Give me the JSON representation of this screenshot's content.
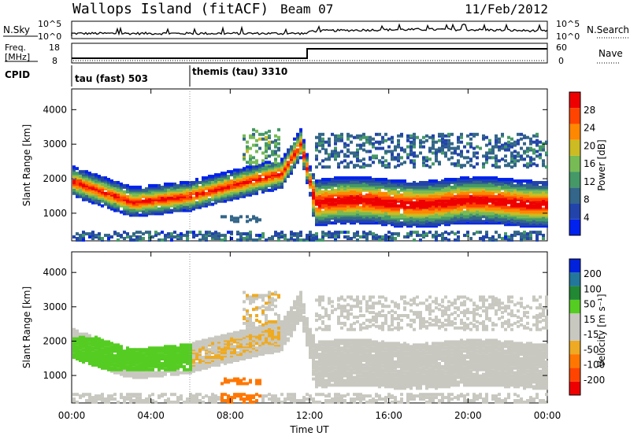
{
  "header": {
    "station": "Wallops Island (fitACF)",
    "beam": "Beam 07",
    "date": "11/Feb/2012"
  },
  "top_panel": {
    "nsky_label": "N.Sky",
    "nsky_tick_top": "10^5",
    "nsky_tick_bottom": "10^0",
    "nsearch_label": "N.Search",
    "nsearch_tick_top": "10^5",
    "nsearch_tick_bottom": "10^0",
    "freq_label_line1": "Freq.",
    "freq_label_line2": "[MHz]",
    "freq_tick_top": "18",
    "freq_tick_bottom": "8",
    "nave_label": "Nave",
    "nave_tick_top": "60",
    "nave_tick_bottom": "0",
    "cpid_label": "CPID",
    "cpid_segments": [
      "tau (fast) 503",
      "themis (tau) 3310"
    ]
  },
  "colors": {
    "power_scale": [
      "#0022ee",
      "#2244aa",
      "#336688",
      "#449966",
      "#77bb55",
      "#ccbb22",
      "#ff8800",
      "#ff4400",
      "#ee0000"
    ],
    "velocity_scale": [
      "#0022dd",
      "#22779a",
      "#228833",
      "#55cc22",
      "#c8c8c0",
      "#c8c8c0",
      "#eeaa22",
      "#ff7700",
      "#ff4400",
      "#ee0000"
    ]
  },
  "chart_data": [
    {
      "type": "heatmap",
      "ylabel": "Slant Range [km]",
      "yticks": [
        "1000",
        "2000",
        "3000",
        "4000"
      ],
      "ylim": [
        200,
        4600
      ],
      "xlim": [
        "00:00",
        "24:00"
      ],
      "colorbar": {
        "label": "Power [dB]",
        "ticks": [
          "4",
          "8",
          "12",
          "16",
          "20",
          "24",
          "28"
        ],
        "range": [
          0,
          32
        ]
      },
      "description_values": {
        "main_echo_band_range_km": [
          [
            0,
            1900
          ],
          [
            3,
            1300
          ],
          [
            6,
            1500
          ],
          [
            10,
            2100
          ],
          [
            12,
            1200
          ],
          [
            24,
            1300
          ]
        ]
      }
    },
    {
      "type": "heatmap",
      "ylabel": "Slant Range [km]",
      "xlabel": "Time UT",
      "yticks": [
        "1000",
        "2000",
        "3000",
        "4000"
      ],
      "xticks": [
        "00:00",
        "04:00",
        "08:00",
        "12:00",
        "16:00",
        "20:00",
        "00:00"
      ],
      "ylim": [
        200,
        4600
      ],
      "colorbar": {
        "label": "Velocity [m s⁻¹]",
        "ticks": [
          "200",
          "100",
          "50",
          "15",
          "-15",
          "-50",
          "-100",
          "-200"
        ]
      }
    }
  ]
}
